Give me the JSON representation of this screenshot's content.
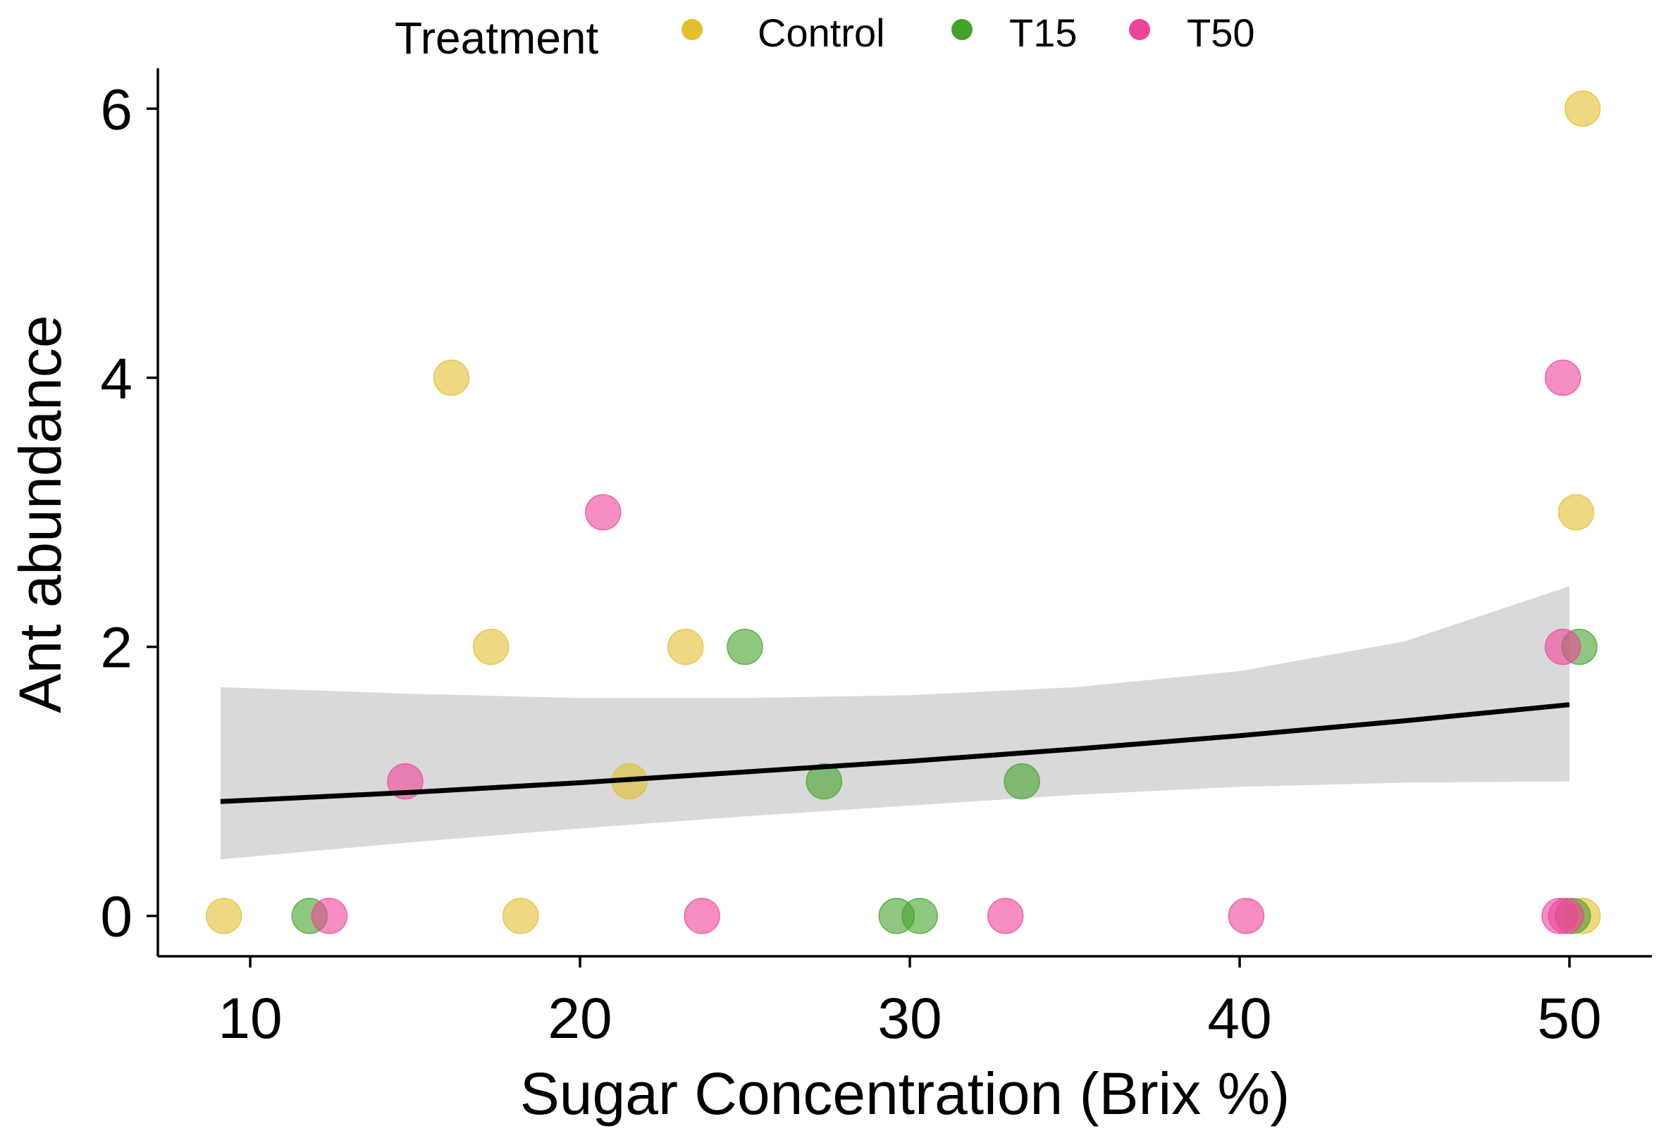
{
  "chart_data": {
    "type": "scatter",
    "title": "",
    "xlabel": "Sugar Concentration (Brix %)",
    "ylabel": "Ant abundance",
    "xlim": [
      7.2,
      52.5
    ],
    "ylim": [
      -0.3,
      6.3
    ],
    "xticks": [
      10,
      20,
      30,
      40,
      50
    ],
    "yticks": [
      0,
      2,
      4,
      6
    ],
    "grid": false,
    "legend": {
      "title": "Treatment",
      "placement": "top",
      "entries": [
        {
          "name": "Control",
          "color": "#E3BE2D"
        },
        {
          "name": "T15",
          "color": "#43A12A"
        },
        {
          "name": "T50",
          "color": "#F0439A"
        }
      ]
    },
    "series": [
      {
        "name": "Control",
        "color": "#E3BE2D",
        "points": [
          {
            "x": 9.2,
            "y": 0
          },
          {
            "x": 16.1,
            "y": 4
          },
          {
            "x": 17.3,
            "y": 2
          },
          {
            "x": 18.2,
            "y": 0
          },
          {
            "x": 21.5,
            "y": 1
          },
          {
            "x": 23.2,
            "y": 2
          },
          {
            "x": 50.4,
            "y": 6
          },
          {
            "x": 50.2,
            "y": 3
          },
          {
            "x": 50.4,
            "y": 0
          }
        ]
      },
      {
        "name": "T15",
        "color": "#43A12A",
        "points": [
          {
            "x": 11.8,
            "y": 0
          },
          {
            "x": 25.0,
            "y": 2
          },
          {
            "x": 27.4,
            "y": 1
          },
          {
            "x": 29.6,
            "y": 0
          },
          {
            "x": 30.3,
            "y": 0
          },
          {
            "x": 33.4,
            "y": 1
          },
          {
            "x": 50.3,
            "y": 2
          },
          {
            "x": 50.1,
            "y": 0
          }
        ]
      },
      {
        "name": "T50",
        "color": "#F0439A",
        "points": [
          {
            "x": 12.4,
            "y": 0
          },
          {
            "x": 14.7,
            "y": 1
          },
          {
            "x": 20.7,
            "y": 3
          },
          {
            "x": 23.7,
            "y": 0
          },
          {
            "x": 32.9,
            "y": 0
          },
          {
            "x": 40.2,
            "y": 0
          },
          {
            "x": 49.8,
            "y": 4
          },
          {
            "x": 49.8,
            "y": 2
          },
          {
            "x": 49.7,
            "y": 0
          },
          {
            "x": 49.9,
            "y": 0
          }
        ]
      }
    ],
    "fit": {
      "type": "line",
      "color": "#000000",
      "band_color": "#d9d9d9",
      "x": [
        9.1,
        15,
        20,
        25,
        30,
        35,
        40,
        45,
        50
      ],
      "y": [
        0.85,
        0.92,
        0.99,
        1.07,
        1.15,
        1.24,
        1.34,
        1.45,
        1.57
      ],
      "ci_lower": [
        0.42,
        0.55,
        0.65,
        0.74,
        0.82,
        0.9,
        0.96,
        0.99,
        1.0
      ],
      "ci_upper": [
        1.7,
        1.65,
        1.62,
        1.62,
        1.64,
        1.7,
        1.82,
        2.04,
        2.45
      ]
    }
  }
}
